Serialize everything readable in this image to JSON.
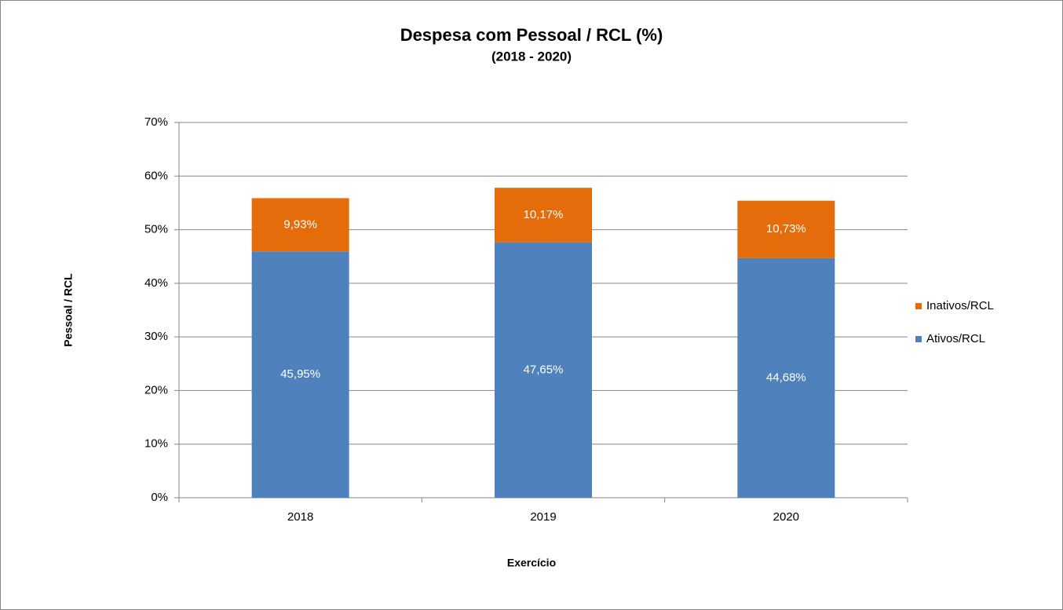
{
  "chart_data": {
    "type": "bar",
    "stacked": true,
    "title": "Despesa com Pessoal / RCL (%)",
    "subtitle": "(2018 - 2020)",
    "x_label": "Exercício",
    "y_label": "Pessoal / RCL",
    "categories": [
      "2018",
      "2019",
      "2020"
    ],
    "series": [
      {
        "name": "Ativos/RCL",
        "color": "#4f81bd",
        "values": [
          45.95,
          47.65,
          44.68
        ],
        "value_labels": [
          "45,95%",
          "47,65%",
          "44,68%"
        ]
      },
      {
        "name": "Inativos/RCL",
        "color": "#e46c0a",
        "values": [
          9.93,
          10.17,
          10.73
        ],
        "value_labels": [
          "9,93%",
          "10,17%",
          "10,73%"
        ]
      }
    ],
    "ylim": [
      0,
      70
    ],
    "yticks": [
      {
        "value": 0,
        "label": "0%"
      },
      {
        "value": 10,
        "label": "10%"
      },
      {
        "value": 20,
        "label": "20%"
      },
      {
        "value": 30,
        "label": "30%"
      },
      {
        "value": 40,
        "label": "40%"
      },
      {
        "value": 50,
        "label": "50%"
      },
      {
        "value": 60,
        "label": "60%"
      },
      {
        "value": 70,
        "label": "70%"
      }
    ],
    "grid": true,
    "legend": "right"
  }
}
